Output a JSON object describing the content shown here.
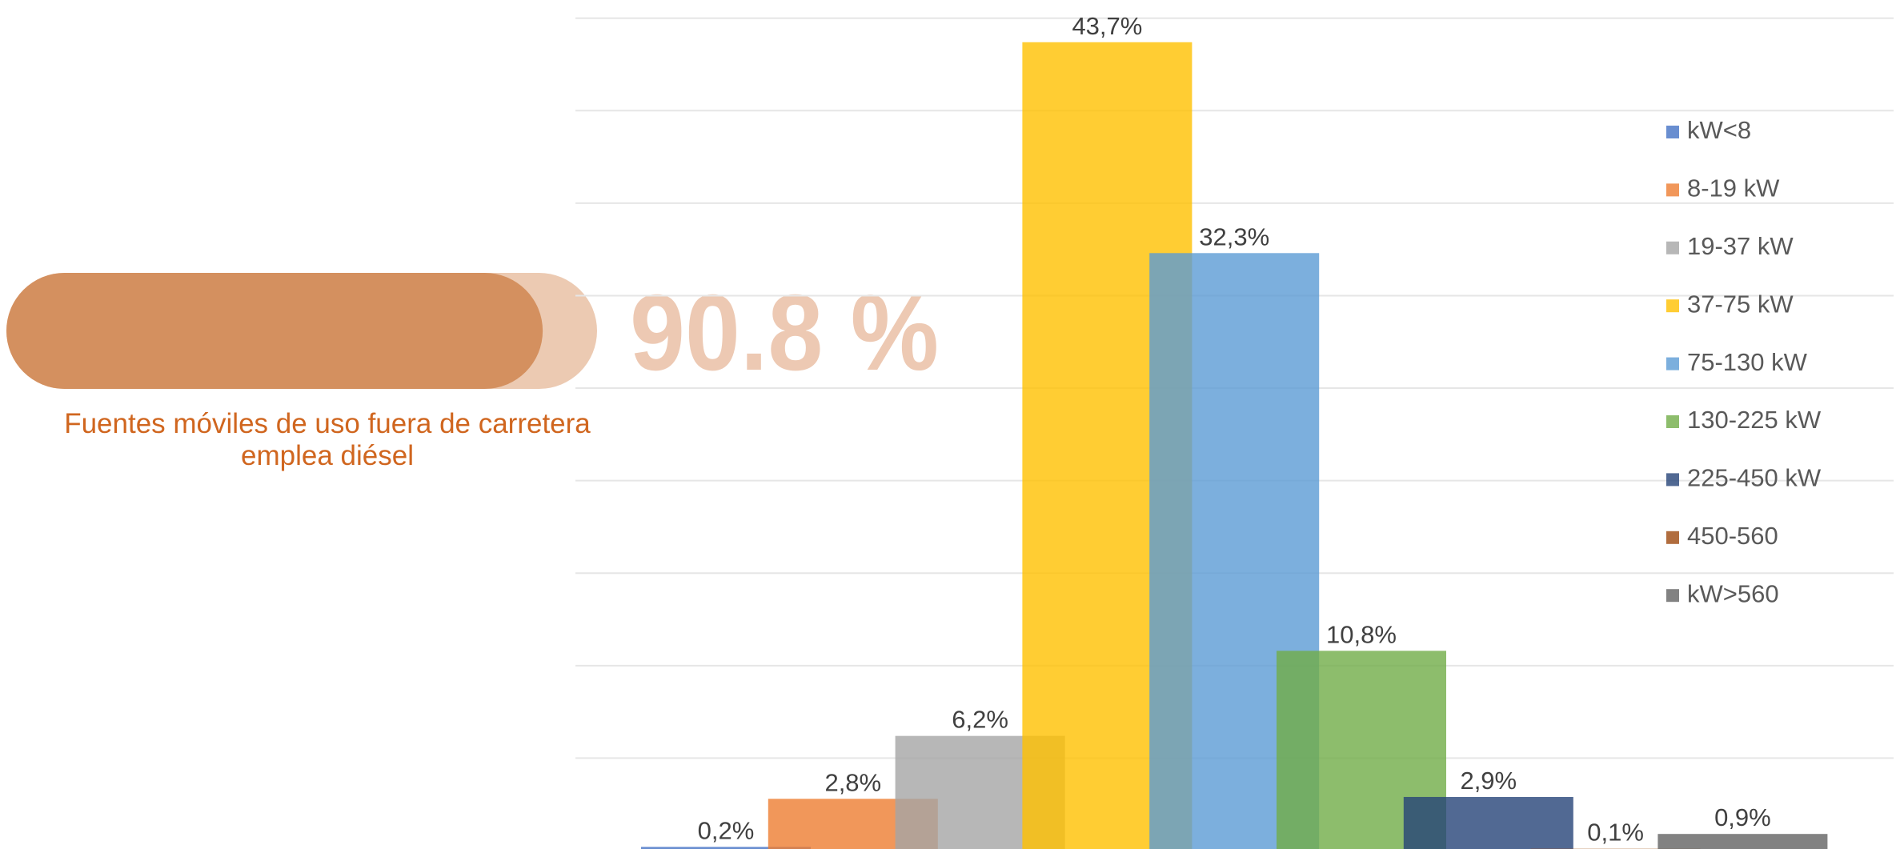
{
  "stat": {
    "value": 90.8,
    "label": "90.8 %",
    "xlim": [
      0,
      100
    ],
    "caption": "Fuentes móviles de uso fuera de carretera emplea diésel"
  },
  "chart_data": {
    "type": "bar",
    "categories": [
      "kW<8",
      "8-19 kW",
      "19-37 kW",
      "37-75 kW",
      "75-130 kW",
      "130-225 kW",
      "225-450 kW",
      "450-560",
      "kW>560"
    ],
    "values": [
      0.2,
      2.8,
      6.2,
      43.7,
      32.3,
      10.8,
      2.9,
      0.1,
      0.9
    ],
    "value_labels": [
      "0,2%",
      "2,8%",
      "6,2%",
      "43,7%",
      "32,3%",
      "10,8%",
      "2,9%",
      "0,1%",
      "0,9%"
    ],
    "colors": [
      "#4472c4",
      "#ed7d31",
      "#a5a5a5",
      "#ffc000",
      "#5b9bd5",
      "#70ad47",
      "#264478",
      "#9e480e",
      "#636363"
    ],
    "ylim": [
      0,
      45
    ],
    "yticks": [
      0,
      5,
      10,
      15,
      20,
      25,
      30,
      35,
      40,
      45
    ],
    "grid": true,
    "legend": "right"
  }
}
